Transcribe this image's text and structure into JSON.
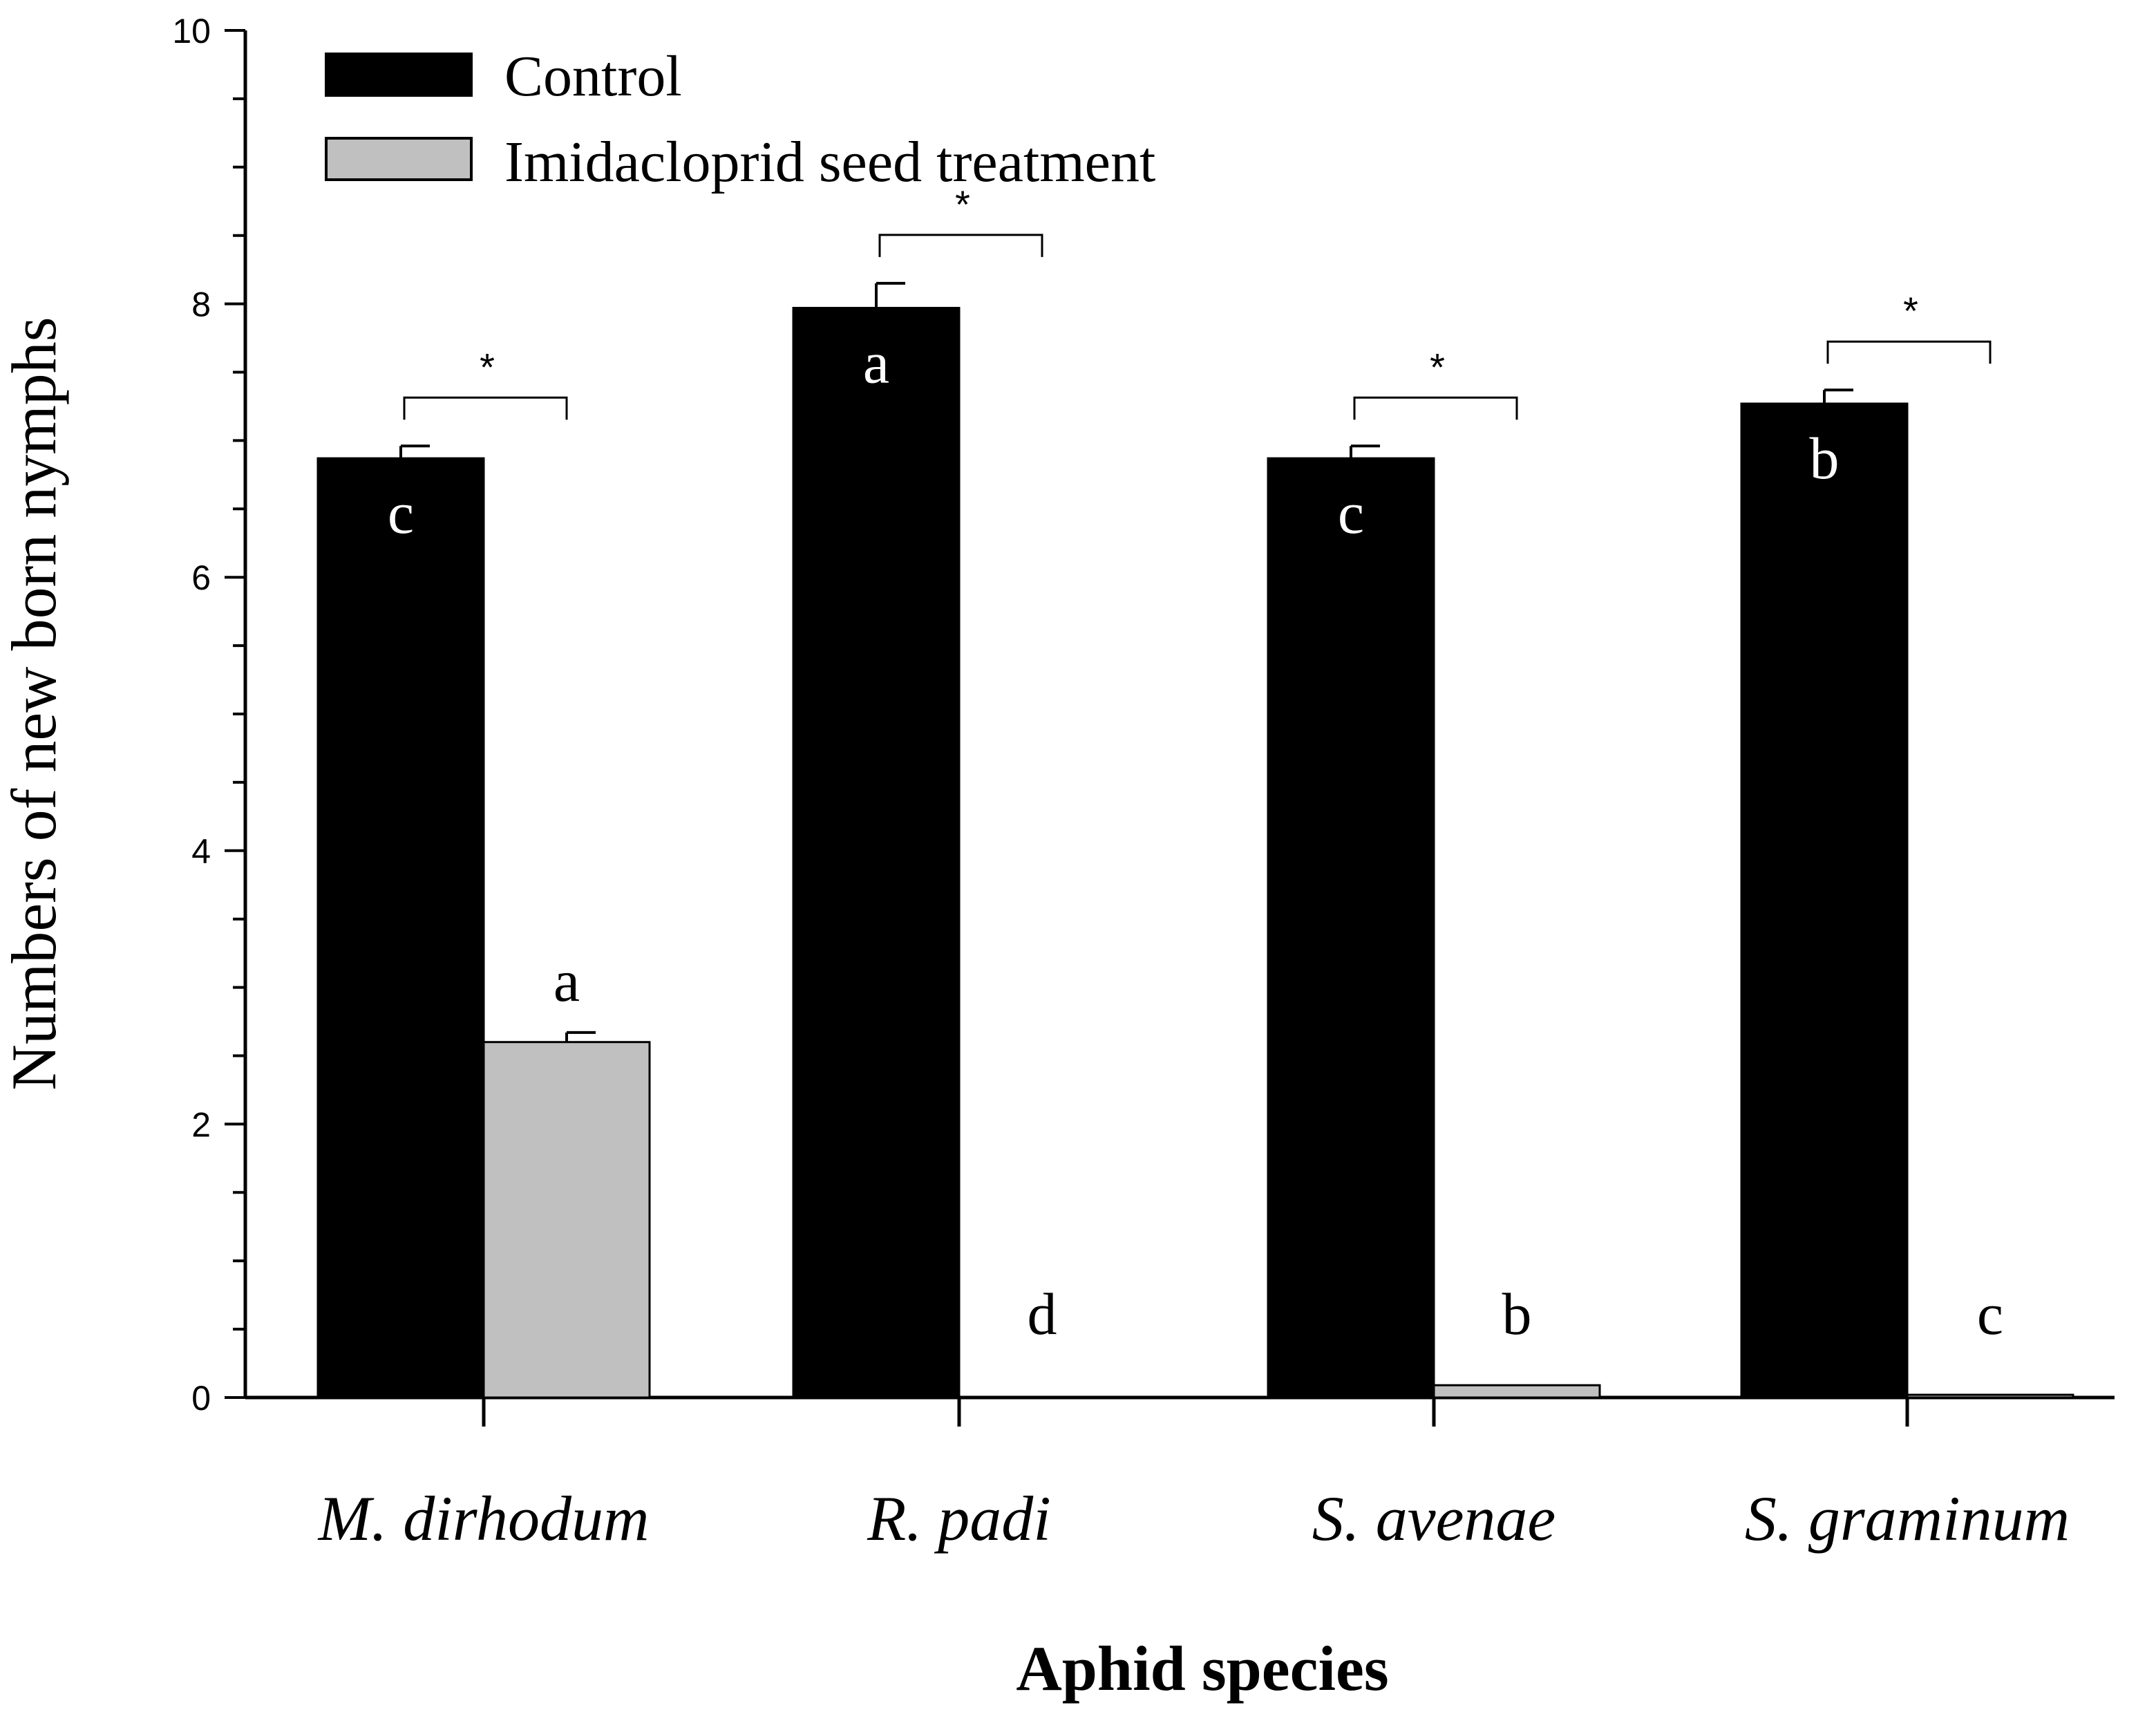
{
  "chart_data": {
    "type": "bar",
    "title": "",
    "xlabel": "Aphid species",
    "ylabel": "Numbers of new born nymphs",
    "ylim": [
      0,
      10
    ],
    "yticks": [
      "0",
      "2",
      "4",
      "6",
      "8",
      "10"
    ],
    "categories": [
      "M. dirhodum",
      "R. padi",
      "S. avenae",
      "S. graminum"
    ],
    "series": [
      {
        "name": "Control",
        "color": "#000000",
        "values": [
          6.87,
          7.97,
          6.87,
          7.27
        ],
        "errors": [
          0.09,
          0.18,
          0.09,
          0.1
        ],
        "letters": [
          "c",
          "a",
          "c",
          "b"
        ]
      },
      {
        "name": "Imidacloprid seed treatment",
        "color": "#c0c0c0",
        "values": [
          2.6,
          0.0,
          0.09,
          0.02
        ],
        "errors": [
          0.07,
          0.0,
          0.0,
          0.0
        ],
        "letters": [
          "a",
          "d",
          "b",
          "c"
        ]
      }
    ],
    "significance": [
      "*",
      "*",
      "*",
      "*"
    ],
    "legend_position": "top-left"
  }
}
